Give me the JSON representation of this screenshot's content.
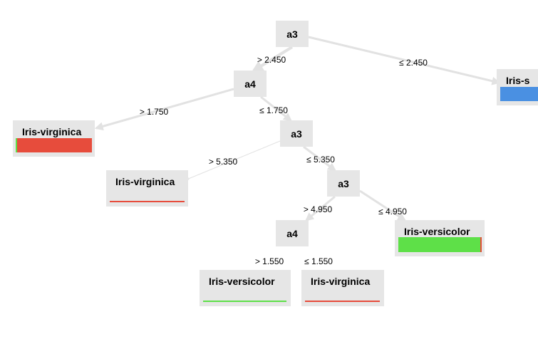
{
  "colors": {
    "node_bg": "#e6e6e6",
    "edge": "#e2e2e2",
    "Iris-virginica": "#e74c3c",
    "Iris-versicolor": "#5ee048",
    "Iris-setosa": "#4a90e2"
  },
  "nodes": {
    "root": {
      "label": "a3"
    },
    "n_a4": {
      "label": "a4"
    },
    "n_a3b": {
      "label": "a3"
    },
    "n_a3c": {
      "label": "a3"
    },
    "n_a4b": {
      "label": "a4"
    },
    "leaf_setosa": {
      "label": "Iris-s",
      "distribution": [
        {
          "class": "Iris-setosa",
          "fraction": 1.0
        }
      ]
    },
    "leaf_virginica_1": {
      "label": "Iris-virginica",
      "distribution": [
        {
          "class": "Iris-versicolor",
          "fraction": 0.02
        },
        {
          "class": "Iris-virginica",
          "fraction": 0.98
        }
      ]
    },
    "leaf_virginica_2": {
      "label": "Iris-virginica",
      "distribution": [
        {
          "class": "Iris-virginica",
          "fraction": 1.0
        }
      ]
    },
    "leaf_versicolor_1": {
      "label": "Iris-versicolor",
      "distribution": [
        {
          "class": "Iris-versicolor",
          "fraction": 0.98
        },
        {
          "class": "Iris-virginica",
          "fraction": 0.02
        }
      ]
    },
    "leaf_versicolor_2": {
      "label": "Iris-versicolor",
      "distribution": [
        {
          "class": "Iris-versicolor",
          "fraction": 1.0
        }
      ]
    },
    "leaf_virginica_3": {
      "label": "Iris-virginica",
      "distribution": [
        {
          "class": "Iris-virginica",
          "fraction": 1.0
        }
      ]
    }
  },
  "edges": [
    {
      "from": "root",
      "to": "n_a4",
      "label": "> 2.450"
    },
    {
      "from": "root",
      "to": "leaf_setosa",
      "label": "≤ 2.450"
    },
    {
      "from": "n_a4",
      "to": "leaf_virginica_1",
      "label": "> 1.750"
    },
    {
      "from": "n_a4",
      "to": "n_a3b",
      "label": "≤ 1.750"
    },
    {
      "from": "n_a3b",
      "to": "leaf_virginica_2",
      "label": "> 5.350"
    },
    {
      "from": "n_a3b",
      "to": "n_a3c",
      "label": "≤ 5.350"
    },
    {
      "from": "n_a3c",
      "to": "n_a4b",
      "label": "> 4.950"
    },
    {
      "from": "n_a3c",
      "to": "leaf_versicolor_1",
      "label": "≤ 4.950"
    },
    {
      "from": "n_a4b",
      "to": "leaf_versicolor_2",
      "label": "> 1.550"
    },
    {
      "from": "n_a4b",
      "to": "leaf_virginica_3",
      "label": "≤ 1.550"
    }
  ]
}
